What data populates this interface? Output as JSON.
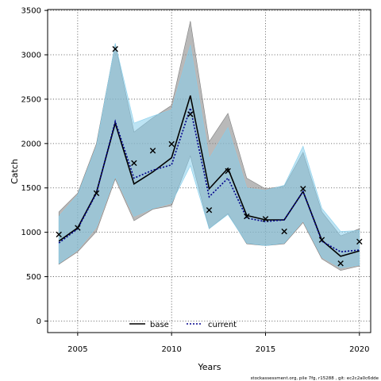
{
  "chart_data": {
    "type": "line",
    "xlabel": "Years",
    "ylabel": "Catch",
    "xlim": [
      2003.4,
      2020.6
    ],
    "ylim": [
      -130,
      3510
    ],
    "xticks": [
      2005,
      2010,
      2015,
      2020
    ],
    "yticks": [
      0,
      500,
      1000,
      1500,
      2000,
      2500,
      3000,
      3500
    ],
    "grid": true,
    "legend_position": "bottom-center",
    "x": [
      2004,
      2005,
      2006,
      2007,
      2008,
      2009,
      2010,
      2011,
      2012,
      2013,
      2014,
      2015,
      2016,
      2017,
      2018,
      2019,
      2020
    ],
    "observed": {
      "marker": "x",
      "values": [
        975,
        1050,
        1440,
        3065,
        1780,
        1920,
        1995,
        2330,
        1250,
        1690,
        1180,
        1150,
        1010,
        1490,
        915,
        650,
        895
      ]
    },
    "series": [
      {
        "name": "base",
        "color": "#000000",
        "style": "solid",
        "band_color": "#7f7f7f",
        "values": [
          900,
          1050,
          1450,
          2230,
          1545,
          1680,
          1840,
          2540,
          1490,
          1720,
          1190,
          1140,
          1140,
          1460,
          910,
          730,
          790
        ],
        "lower": [
          640,
          780,
          1010,
          1600,
          1130,
          1260,
          1300,
          1860,
          1040,
          1210,
          870,
          850,
          870,
          1110,
          700,
          570,
          620
        ],
        "upper": [
          1230,
          1440,
          2000,
          3120,
          2130,
          2290,
          2430,
          3380,
          2020,
          2340,
          1610,
          1490,
          1520,
          1900,
          1230,
          960,
          1040
        ]
      },
      {
        "name": "current",
        "color": "#00008b",
        "style": "dotted",
        "band_color": "#87ceeb",
        "values": [
          880,
          1040,
          1440,
          2250,
          1610,
          1700,
          1760,
          2400,
          1400,
          1610,
          1160,
          1120,
          1140,
          1460,
          900,
          780,
          800
        ],
        "lower": [
          650,
          800,
          1060,
          1630,
          1180,
          1270,
          1330,
          1750,
          1040,
          1200,
          880,
          850,
          880,
          1130,
          720,
          600,
          630
        ],
        "upper": [
          1180,
          1420,
          1970,
          3130,
          2230,
          2310,
          2380,
          3110,
          1830,
          2180,
          1500,
          1470,
          1530,
          1970,
          1270,
          1010,
          1020
        ]
      }
    ],
    "footer_text": "stockassessment.org, pile  7fg, r15288 ,  git: ec2c2a0c6dde"
  }
}
